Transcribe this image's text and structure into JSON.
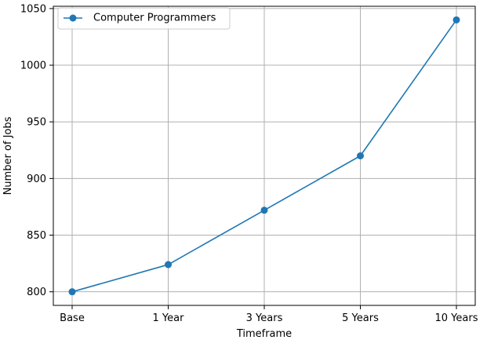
{
  "chart_data": {
    "type": "line",
    "title": "",
    "xlabel": "Timeframe",
    "ylabel": "Number of Jobs",
    "categories": [
      "Base",
      "1 Year",
      "3 Years",
      "5 Years",
      "10 Years"
    ],
    "series": [
      {
        "name": "Computer Programmers",
        "values": [
          800,
          824,
          872,
          920,
          1040
        ],
        "color": "#1f77b4",
        "marker": "circle"
      }
    ],
    "ylim": [
      788,
      1052
    ],
    "yticks": [
      800,
      850,
      900,
      950,
      1000,
      1050
    ],
    "grid": true,
    "legend_position": "top-left"
  }
}
